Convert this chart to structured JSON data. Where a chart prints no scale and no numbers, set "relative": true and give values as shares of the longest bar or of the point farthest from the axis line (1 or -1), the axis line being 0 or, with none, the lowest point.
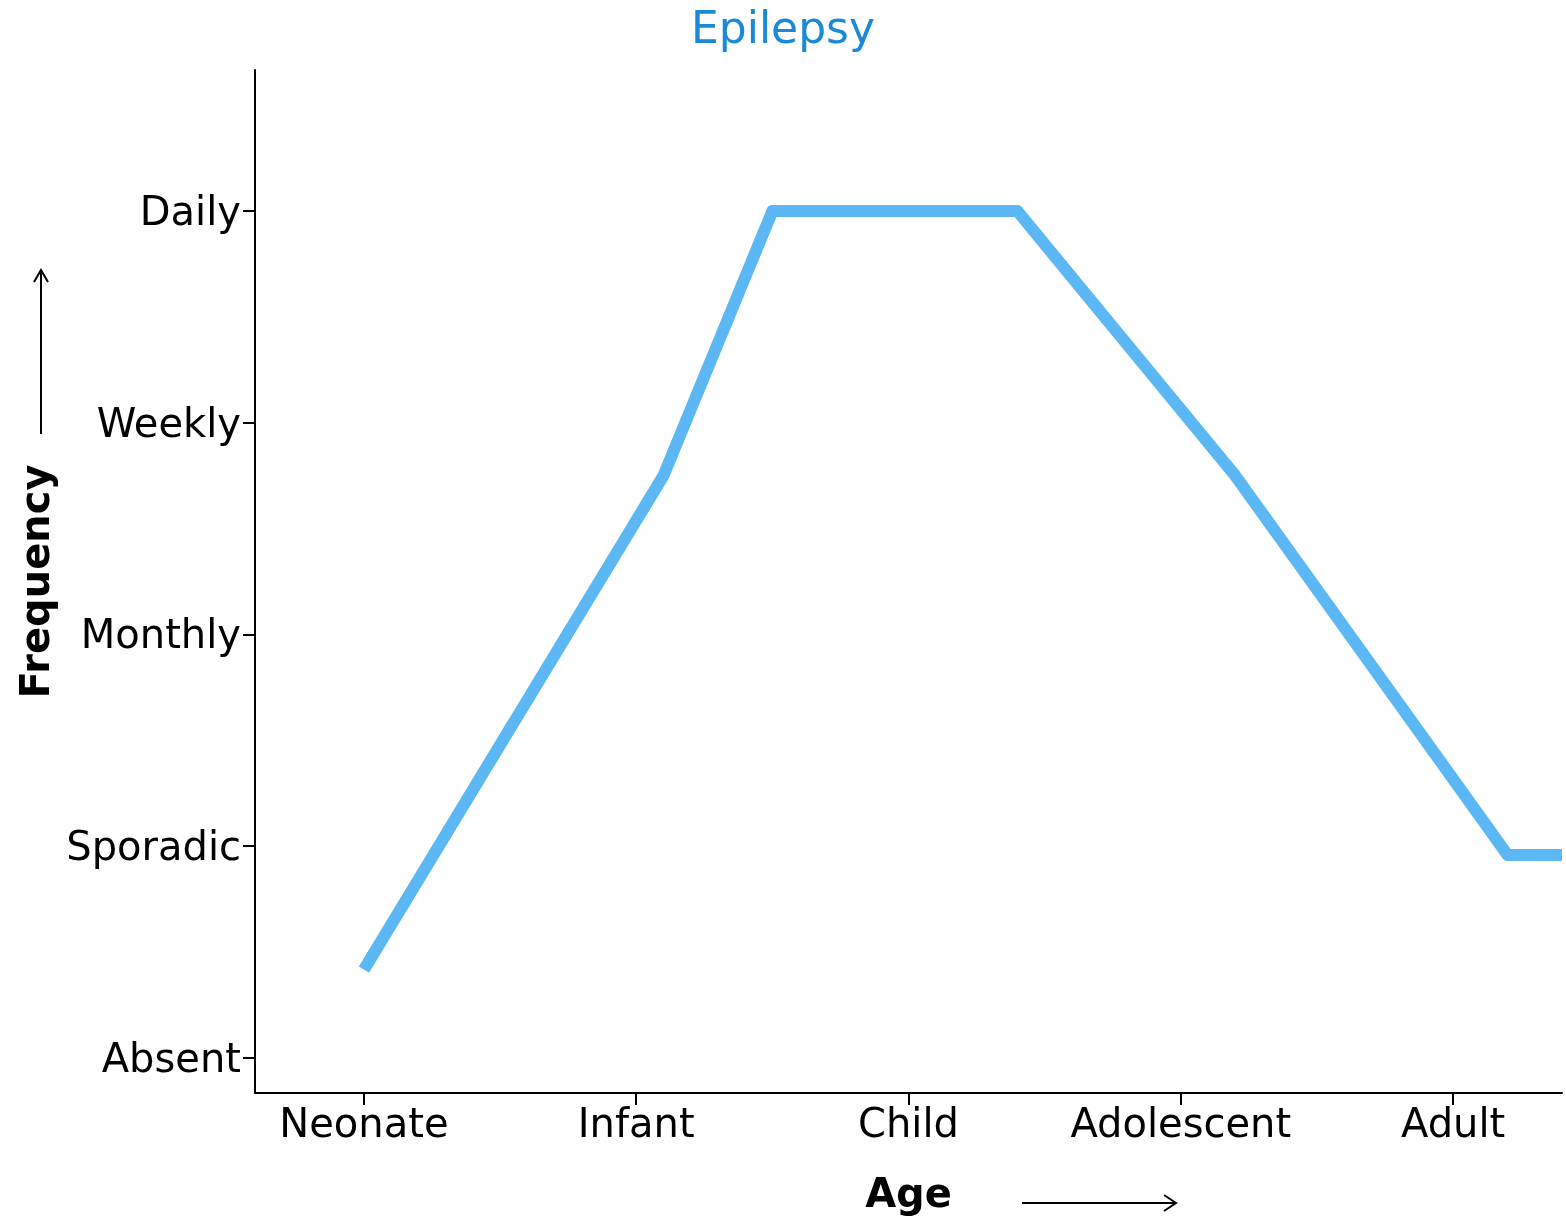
{
  "chart_data": {
    "type": "line",
    "title": "Epilepsy",
    "xlabel": "Age",
    "ylabel": "Frequency",
    "relative": true,
    "categories": [
      null,
      null,
      null,
      null,
      "Neonate",
      null,
      null,
      null,
      null,
      null,
      null,
      null,
      null,
      null,
      "Infant",
      null,
      null,
      null,
      null,
      null,
      null,
      null,
      null,
      null,
      "Child",
      null,
      null,
      null,
      null,
      null,
      null,
      null,
      null,
      null,
      "Adolescent",
      null,
      null,
      null,
      null,
      null,
      null,
      null,
      null,
      null,
      "Adult",
      null,
      null,
      null,
      null
    ],
    "series": [
      {
        "color": "#5bb8f5",
        "values": [
          null,
          null,
          null,
          null,
          0.14,
          null,
          null,
          null,
          null,
          null,
          null,
          null,
          null,
          null,
          null,
          0.7,
          null,
          null,
          null,
          1,
          null,
          null,
          null,
          null,
          null,
          null,
          null,
          null,
          1,
          null,
          null,
          null,
          null,
          null,
          null,
          null,
          0.7,
          null,
          null,
          null,
          null,
          null,
          null,
          null,
          null,
          null,
          0.27,
          null,
          0.27
        ]
      }
    ],
    "annotations": [
      "Absent",
      "Sporadic",
      "Monthly",
      "Weekly",
      "Daily"
    ],
    "grid": false,
    "marker": "none",
    "line_style": "solid"
  }
}
